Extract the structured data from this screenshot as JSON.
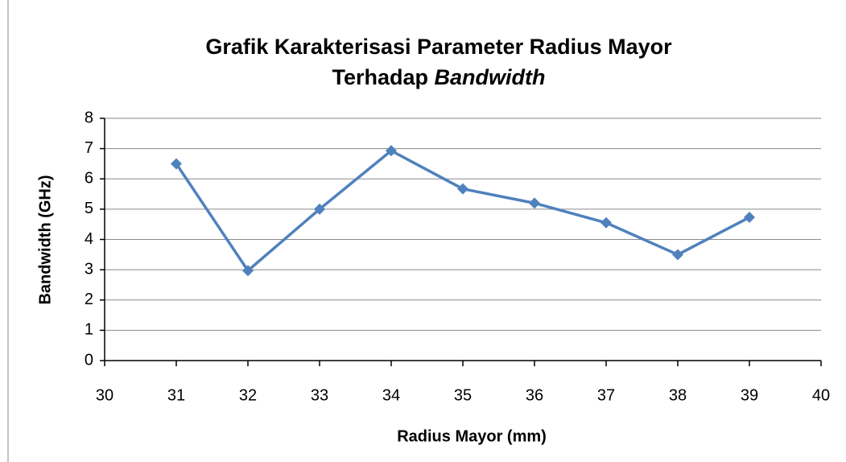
{
  "chart_data": {
    "type": "line",
    "title_lines": [
      "Grafik Karakterisasi Parameter Radius Mayor",
      "Terhadap"
    ],
    "title_emphasis": "Bandwidth",
    "x_label": "Radius Mayor (mm)",
    "y_label": "Bandwidth (GHz)",
    "x": [
      31,
      32,
      33,
      34,
      35,
      36,
      37,
      38,
      39
    ],
    "series": [
      {
        "name": "Bandwidth (GHz)",
        "color": "#4f81bd",
        "values": [
          6.5,
          2.97,
          5.0,
          6.93,
          5.67,
          5.2,
          4.55,
          3.5,
          4.73
        ]
      }
    ],
    "xlim": [
      30,
      40
    ],
    "xticks": [
      30,
      31,
      32,
      33,
      34,
      35,
      36,
      37,
      38,
      39,
      40
    ],
    "ylim": [
      0,
      8
    ],
    "yticks": [
      0,
      1,
      2,
      3,
      4,
      5,
      6,
      7,
      8
    ],
    "grid": true,
    "legend": false
  }
}
